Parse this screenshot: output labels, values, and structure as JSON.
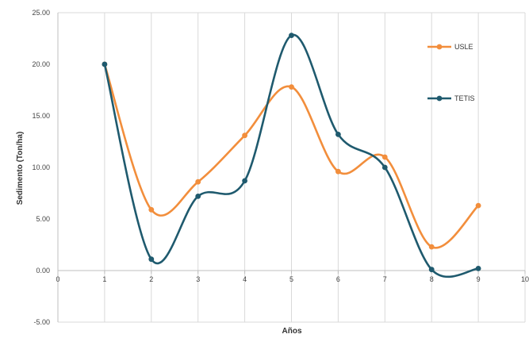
{
  "chart_data": {
    "type": "line",
    "xlabel": "Años",
    "ylabel": "Sedimento (Ton/ha)",
    "xlim": [
      0,
      10
    ],
    "ylim": [
      -5,
      25
    ],
    "x_ticks": [
      0,
      1,
      2,
      3,
      4,
      5,
      6,
      7,
      8,
      9,
      10
    ],
    "x_tick_labels": [
      "0",
      "1",
      "2",
      "3",
      "4",
      "5",
      "6",
      "7",
      "8",
      "9",
      "10"
    ],
    "y_ticks": [
      -5,
      0,
      5,
      10,
      15,
      20,
      25
    ],
    "y_tick_labels": [
      "-5.00",
      "0.00",
      "5.00",
      "10.00",
      "15.00",
      "20.00",
      "25.00"
    ],
    "grid": "vertical",
    "legend_position": "right",
    "smooth": true,
    "x": [
      1,
      2,
      3,
      4,
      5,
      6,
      7,
      8,
      9
    ],
    "series": [
      {
        "name": "USLE",
        "color": "#F28E3C",
        "values": [
          20.0,
          5.9,
          8.6,
          13.1,
          17.8,
          9.6,
          11.0,
          2.3,
          6.3
        ]
      },
      {
        "name": "TETIS",
        "color": "#1F5A6E",
        "values": [
          20.0,
          1.1,
          7.2,
          8.7,
          22.8,
          13.2,
          10.0,
          0.1,
          0.2
        ]
      }
    ]
  }
}
